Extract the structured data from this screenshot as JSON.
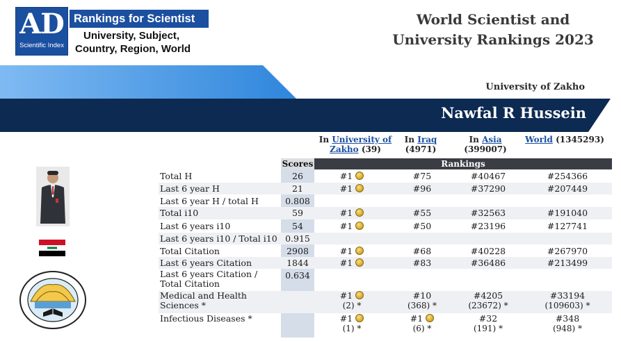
{
  "header": {
    "logo_letters": "AD",
    "logo_sub": "Scientific Index",
    "brand": "Rankings for Scientist",
    "tagline": [
      "University, Subject,",
      "Country, Region, World"
    ],
    "title_lines": [
      "World Scientist and",
      "University Rankings 2023"
    ]
  },
  "banner": {
    "institution": "University of Zakho",
    "name": "Nawfal R Hussein"
  },
  "columns": {
    "university": {
      "prefix": "In",
      "link": "University of Zakho",
      "count": "(39)"
    },
    "country": {
      "prefix": "In",
      "link": "Iraq",
      "count": "(4971)"
    },
    "region": {
      "prefix": "In",
      "link": "Asia",
      "count": "(399007)"
    },
    "world": {
      "link": "World",
      "count": "(1345293)"
    }
  },
  "labels": {
    "scores": "Scores",
    "rankings": "Rankings"
  },
  "rows": [
    {
      "metric": "Total H",
      "score": "26",
      "university": "#1",
      "medal": true,
      "country": "#75",
      "region": "#40467",
      "world": "#254366"
    },
    {
      "metric": "Last 6 year H",
      "score": "21",
      "university": "#1",
      "medal": true,
      "country": "#96",
      "region": "#37290",
      "world": "#207449"
    },
    {
      "metric": "Last 6 year H / total H",
      "score": "0.808"
    },
    {
      "metric": "Total i10",
      "score": "59",
      "university": "#1",
      "medal": true,
      "country": "#55",
      "region": "#32563",
      "world": "#191040"
    },
    {
      "metric": "Last 6 years i10",
      "score": "54",
      "university": "#1",
      "medal": true,
      "country": "#50",
      "region": "#23196",
      "world": "#127741"
    },
    {
      "metric": "Last 6 years i10 / Total i10",
      "score": "0.915"
    },
    {
      "metric": "Total Citation",
      "score": "2908",
      "university": "#1",
      "medal": true,
      "country": "#68",
      "region": "#40228",
      "world": "#267970"
    },
    {
      "metric": "Last 6 years Citation",
      "score": "1844",
      "university": "#1",
      "medal": true,
      "country": "#83",
      "region": "#36486",
      "world": "#213499"
    },
    {
      "metric": "Last 6 years Citation / Total Citation",
      "score": "0.634"
    }
  ],
  "subjects": [
    {
      "metric": "Medical and Health Sciences *",
      "university": "#1",
      "university_sub": "(2) *",
      "country": "#10",
      "country_sub": "(368) *",
      "region": "#4205",
      "region_sub": "(23672) *",
      "world": "#33194",
      "world_sub": "(109603) *"
    },
    {
      "metric": "Infectious Diseases *",
      "university": "#1",
      "university_sub": "(1) *",
      "country": "#1",
      "country_sub": "(6) *",
      "region": "#32",
      "region_sub": "(191) *",
      "world": "#348",
      "world_sub": "(948) *"
    }
  ],
  "colors": {
    "brand_blue": "#1b4fa0",
    "banner_dark": "#0c2a52",
    "banner_light": "#3a8ee0",
    "medal_gold": "#d4a52a"
  }
}
